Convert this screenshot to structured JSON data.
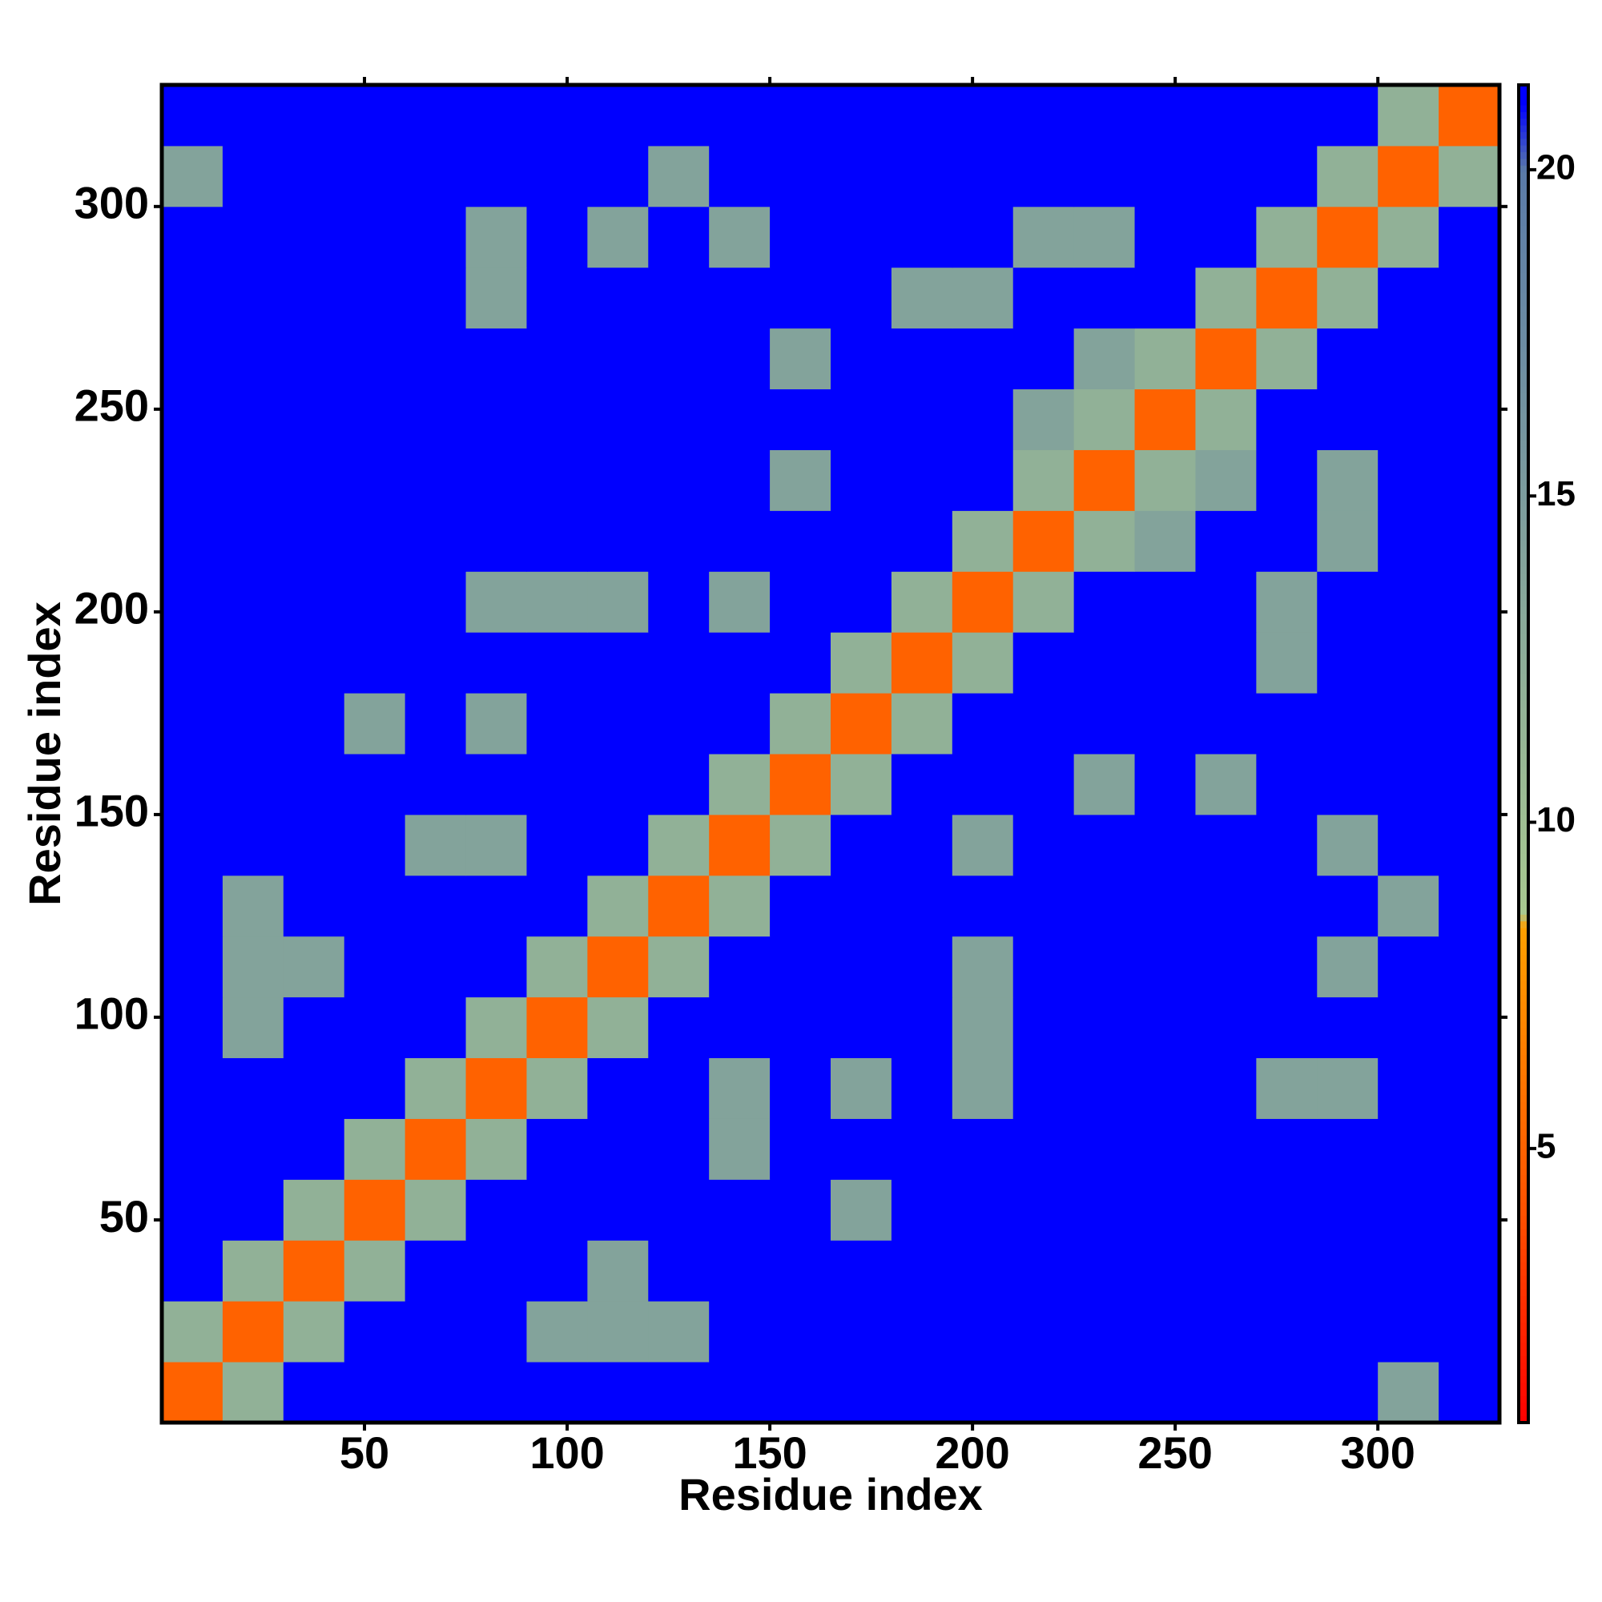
{
  "chart_data": {
    "type": "heatmap",
    "xlabel": "Residue index",
    "ylabel": "Residue index",
    "xlim": [
      0,
      330
    ],
    "ylim": [
      0,
      330
    ],
    "xticks": [
      50,
      100,
      150,
      200,
      250,
      300
    ],
    "yticks": [
      50,
      100,
      150,
      200,
      250,
      300
    ],
    "values": [
      [
        5,
        12,
        21,
        21,
        21,
        21,
        21,
        21,
        21,
        21,
        21,
        21,
        21,
        21,
        21,
        21,
        21,
        21,
        21,
        21,
        14,
        21
      ],
      [
        12,
        5,
        12,
        21,
        21,
        21,
        14,
        14,
        14,
        21,
        21,
        21,
        21,
        21,
        21,
        21,
        21,
        21,
        21,
        21,
        21,
        21
      ],
      [
        21,
        12,
        5,
        12,
        21,
        21,
        21,
        14,
        21,
        21,
        21,
        21,
        21,
        21,
        21,
        21,
        21,
        21,
        21,
        21,
        21,
        21
      ],
      [
        21,
        21,
        12,
        5,
        12,
        21,
        21,
        21,
        21,
        21,
        21,
        14,
        21,
        21,
        21,
        21,
        21,
        21,
        21,
        21,
        21,
        21
      ],
      [
        21,
        21,
        21,
        12,
        5,
        12,
        21,
        21,
        21,
        14,
        21,
        21,
        21,
        21,
        21,
        21,
        21,
        21,
        21,
        21,
        21,
        21
      ],
      [
        21,
        21,
        21,
        21,
        12,
        5,
        12,
        21,
        21,
        14,
        21,
        14,
        21,
        14,
        21,
        21,
        21,
        21,
        14,
        14,
        21,
        21
      ],
      [
        21,
        14,
        21,
        21,
        21,
        12,
        5,
        12,
        21,
        21,
        21,
        21,
        21,
        14,
        21,
        21,
        21,
        21,
        21,
        21,
        21,
        21
      ],
      [
        21,
        14,
        14,
        21,
        21,
        21,
        12,
        5,
        12,
        21,
        21,
        21,
        21,
        14,
        21,
        21,
        21,
        21,
        21,
        14,
        21,
        21
      ],
      [
        21,
        14,
        21,
        21,
        21,
        21,
        21,
        12,
        5,
        12,
        21,
        21,
        21,
        21,
        21,
        21,
        21,
        21,
        21,
        21,
        14,
        21
      ],
      [
        21,
        21,
        21,
        21,
        14,
        14,
        21,
        21,
        12,
        5,
        12,
        21,
        21,
        14,
        21,
        21,
        21,
        21,
        21,
        14,
        21,
        21
      ],
      [
        21,
        21,
        21,
        21,
        21,
        21,
        21,
        21,
        21,
        12,
        5,
        12,
        21,
        21,
        21,
        14,
        21,
        14,
        21,
        21,
        21,
        21
      ],
      [
        21,
        21,
        21,
        14,
        21,
        14,
        21,
        21,
        21,
        21,
        12,
        5,
        12,
        21,
        21,
        21,
        21,
        21,
        21,
        21,
        21,
        21
      ],
      [
        21,
        21,
        21,
        21,
        21,
        21,
        21,
        21,
        21,
        21,
        21,
        12,
        5,
        12,
        21,
        21,
        21,
        21,
        14,
        21,
        21,
        21
      ],
      [
        21,
        21,
        21,
        21,
        21,
        14,
        14,
        14,
        21,
        14,
        21,
        21,
        12,
        5,
        12,
        21,
        21,
        21,
        14,
        21,
        21,
        21
      ],
      [
        21,
        21,
        21,
        21,
        21,
        21,
        21,
        21,
        21,
        21,
        21,
        21,
        21,
        12,
        5,
        12,
        14,
        21,
        21,
        14,
        21,
        21
      ],
      [
        21,
        21,
        21,
        21,
        21,
        21,
        21,
        21,
        21,
        21,
        14,
        21,
        21,
        21,
        12,
        5,
        12,
        14,
        21,
        14,
        21,
        21
      ],
      [
        21,
        21,
        21,
        21,
        21,
        21,
        21,
        21,
        21,
        21,
        21,
        21,
        21,
        21,
        14,
        12,
        5,
        12,
        21,
        21,
        21,
        21
      ],
      [
        21,
        21,
        21,
        21,
        21,
        21,
        21,
        21,
        21,
        21,
        14,
        21,
        21,
        21,
        21,
        14,
        12,
        5,
        12,
        21,
        21,
        21
      ],
      [
        21,
        21,
        21,
        21,
        21,
        14,
        21,
        21,
        21,
        21,
        21,
        21,
        14,
        14,
        21,
        21,
        21,
        12,
        5,
        12,
        21,
        21
      ],
      [
        21,
        21,
        21,
        21,
        21,
        14,
        21,
        14,
        21,
        14,
        21,
        21,
        21,
        21,
        14,
        14,
        21,
        21,
        12,
        5,
        12,
        21
      ],
      [
        14,
        21,
        21,
        21,
        21,
        21,
        21,
        21,
        14,
        21,
        21,
        21,
        21,
        21,
        21,
        21,
        21,
        21,
        21,
        12,
        5,
        12
      ],
      [
        21,
        21,
        21,
        21,
        21,
        21,
        21,
        21,
        21,
        21,
        21,
        21,
        21,
        21,
        21,
        21,
        21,
        21,
        21,
        21,
        12,
        5
      ]
    ],
    "colorbar": {
      "lim": [
        0.8,
        21.3
      ],
      "ticks": [
        5,
        10,
        15,
        20
      ]
    },
    "colorscale": [
      [
        0.8,
        "#ff0000"
      ],
      [
        4,
        "#ff5000"
      ],
      [
        8.4,
        "#ffa000"
      ],
      [
        8.6,
        "#a8c890"
      ],
      [
        20,
        "#5a7aa8"
      ],
      [
        21,
        "#0000ff"
      ]
    ]
  }
}
